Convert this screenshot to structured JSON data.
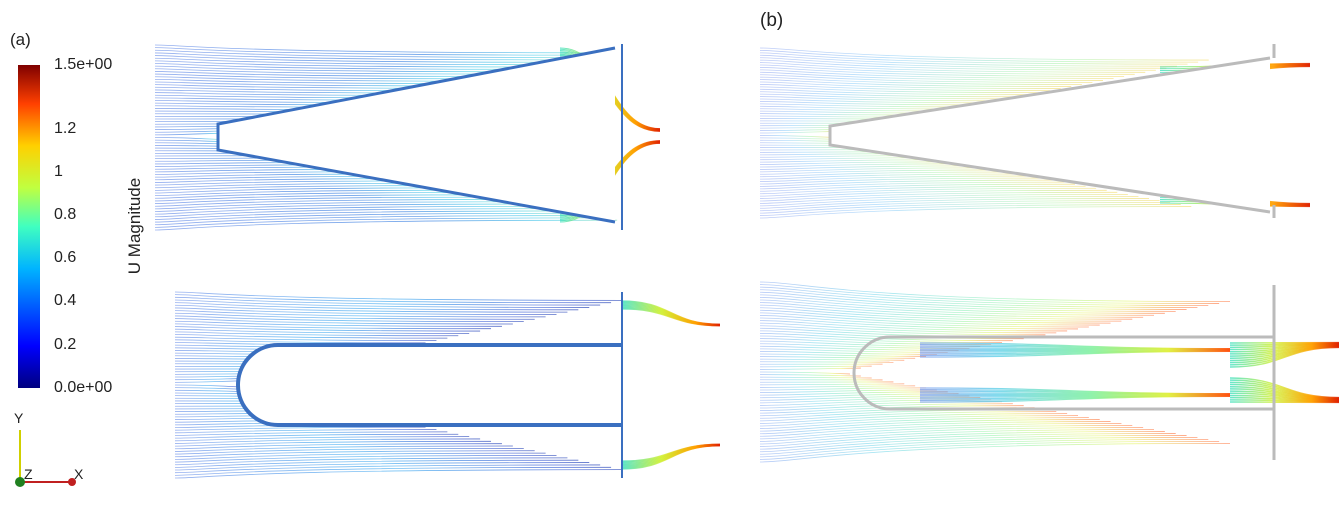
{
  "panels": [
    {
      "label": "(a)"
    },
    {
      "label": "(b)"
    }
  ],
  "colorbar": {
    "title": "U Magnitude",
    "labels": [
      "1.5e+00",
      "1.2",
      "1",
      "0.8",
      "0.6",
      "0.4",
      "0.2",
      "0.0e+00"
    ]
  },
  "axes_triad": {
    "y": "Y",
    "z": "Z",
    "x": "X"
  }
}
